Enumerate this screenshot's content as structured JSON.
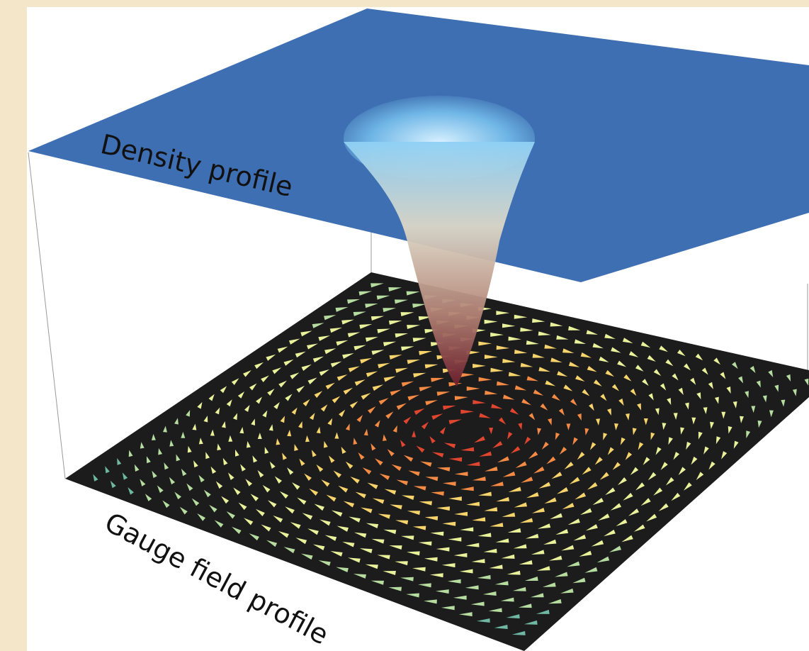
{
  "labels": {
    "top": "Density profile",
    "bottom": "Gauge field profile"
  }
}
